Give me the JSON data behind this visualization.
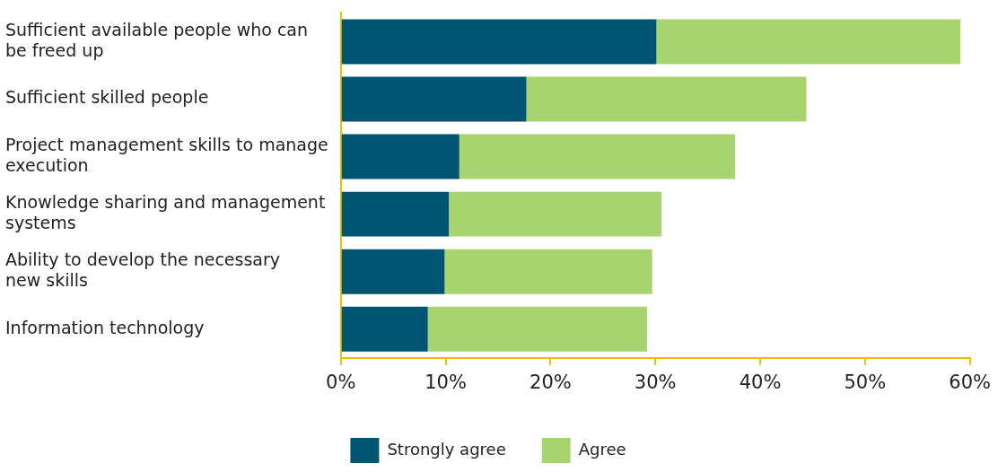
{
  "chart_data": {
    "type": "bar",
    "orientation": "horizontal",
    "stacked": true,
    "categories": [
      "Sufficient available people who can be freed up",
      "Sufficient skilled people",
      "Project management skills to manage execution",
      "Knowledge sharing and management systems",
      "Ability to develop the necessary new skills",
      "Information technology"
    ],
    "series": [
      {
        "name": "Strongly agree",
        "color": "#005572",
        "values": [
          30.1,
          17.7,
          11.3,
          10.3,
          9.9,
          8.3
        ]
      },
      {
        "name": "Agree",
        "color": "#a8d46f",
        "values": [
          29,
          26.7,
          26.3,
          20.3,
          19.8,
          20.9
        ]
      }
    ],
    "xlim": [
      0,
      60
    ],
    "xticks": [
      {
        "value": 0,
        "label": "0%"
      },
      {
        "value": 10,
        "label": "10%"
      },
      {
        "value": 20,
        "label": "20%"
      },
      {
        "value": 30,
        "label": "30%"
      },
      {
        "value": 40,
        "label": "40%"
      },
      {
        "value": 50,
        "label": "50%"
      },
      {
        "value": 60,
        "label": "60%"
      }
    ],
    "grid": false,
    "legend": "bottom"
  }
}
